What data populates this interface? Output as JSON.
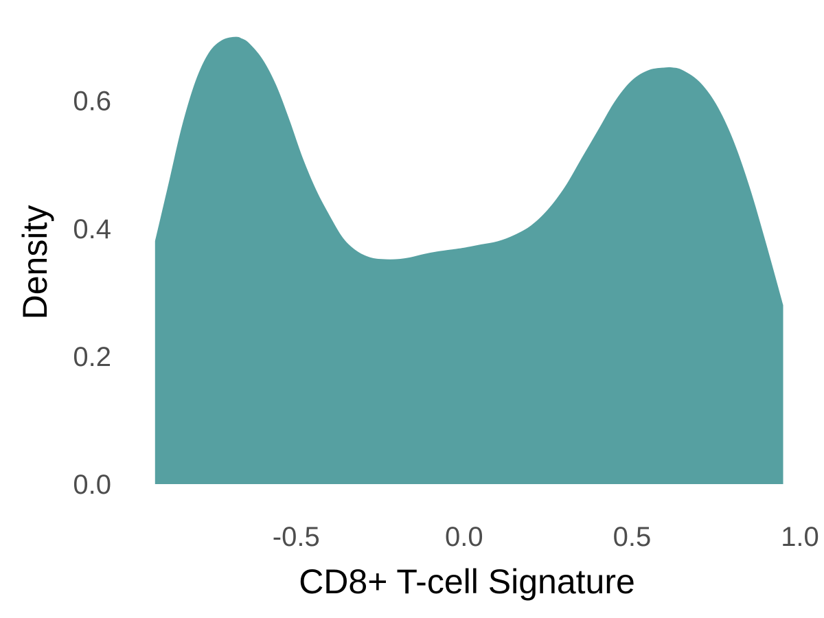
{
  "chart_data": {
    "type": "area",
    "title": "",
    "xlabel": "CD8+ T-cell Signature",
    "ylabel": "Density",
    "xlim": [
      -0.983,
      1.0
    ],
    "ylim": [
      0.0,
      0.72
    ],
    "x_ticks": [
      -0.5,
      0.0,
      0.5,
      1.0
    ],
    "x_tick_labels": [
      "-0.5",
      "0.0",
      "0.5",
      "1.0"
    ],
    "y_ticks": [
      0.0,
      0.2,
      0.4,
      0.6
    ],
    "y_tick_labels": [
      "0.0",
      "0.2",
      "0.4",
      "0.6"
    ],
    "grid": false,
    "legend": "none",
    "fill_color": "#56A0A1",
    "series": [
      {
        "x": [
          -0.92,
          -0.88,
          -0.84,
          -0.8,
          -0.76,
          -0.72,
          -0.68,
          -0.66,
          -0.64,
          -0.6,
          -0.56,
          -0.52,
          -0.48,
          -0.44,
          -0.4,
          -0.36,
          -0.32,
          -0.28,
          -0.24,
          -0.2,
          -0.16,
          -0.12,
          -0.08,
          -0.04,
          0.0,
          0.05,
          0.1,
          0.15,
          0.2,
          0.25,
          0.3,
          0.35,
          0.4,
          0.45,
          0.5,
          0.55,
          0.6,
          0.62,
          0.65,
          0.7,
          0.75,
          0.8,
          0.85,
          0.9,
          0.95
        ],
        "y": [
          0.38,
          0.47,
          0.56,
          0.63,
          0.675,
          0.695,
          0.7,
          0.697,
          0.69,
          0.665,
          0.625,
          0.57,
          0.51,
          0.46,
          0.42,
          0.385,
          0.365,
          0.355,
          0.352,
          0.352,
          0.355,
          0.36,
          0.364,
          0.367,
          0.37,
          0.375,
          0.38,
          0.39,
          0.405,
          0.43,
          0.465,
          0.51,
          0.555,
          0.6,
          0.632,
          0.648,
          0.652,
          0.652,
          0.648,
          0.63,
          0.595,
          0.54,
          0.465,
          0.375,
          0.28
        ]
      }
    ]
  }
}
